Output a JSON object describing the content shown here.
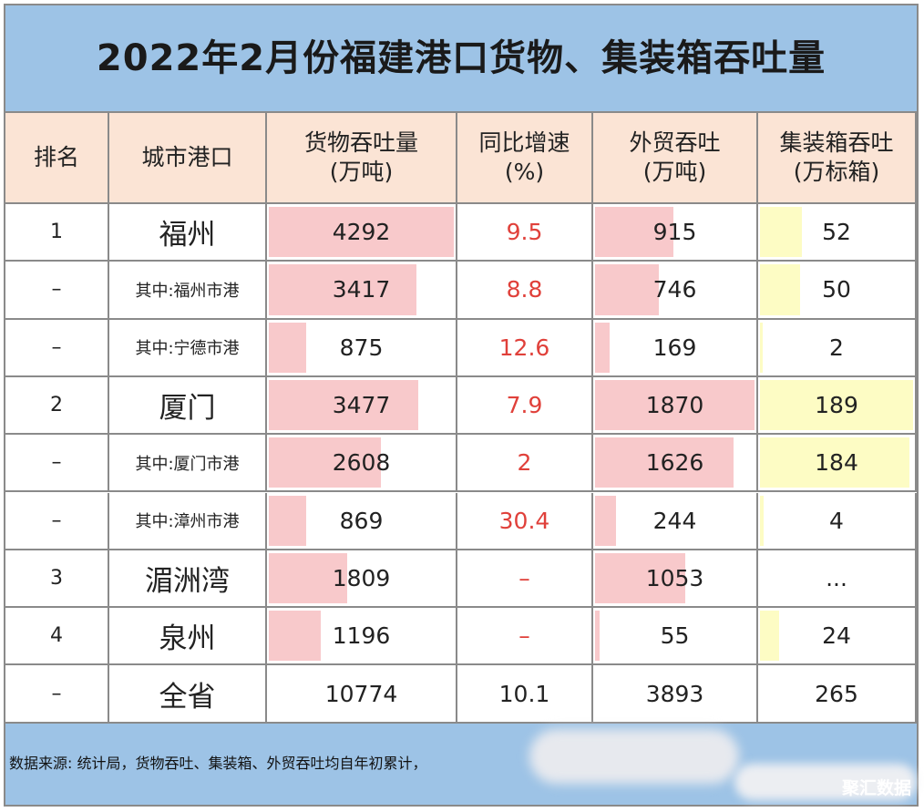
{
  "title": "2022年2月份福建港口货物、集装箱吞吐量",
  "chart_data": {
    "type": "table",
    "columns": [
      {
        "key": "rank",
        "line1": "排名",
        "line2": ""
      },
      {
        "key": "city",
        "line1": "城市港口",
        "line2": ""
      },
      {
        "key": "cargo",
        "line1": "货物吞吐量",
        "line2": "(万吨)"
      },
      {
        "key": "growth",
        "line1": "同比增速",
        "line2": "(%)"
      },
      {
        "key": "foreign",
        "line1": "外贸吞吐",
        "line2": "(万吨)"
      },
      {
        "key": "container",
        "line1": "集装箱吞吐",
        "line2": "(万标箱)"
      }
    ],
    "rows": [
      {
        "rank": "1",
        "city": "福州",
        "sub": false,
        "cargo": "4292",
        "growth": "9.5",
        "foreign": "915",
        "container": "52"
      },
      {
        "rank": "–",
        "city": "其中:福州市港",
        "sub": true,
        "cargo": "3417",
        "growth": "8.8",
        "foreign": "746",
        "container": "50"
      },
      {
        "rank": "–",
        "city": "其中:宁德市港",
        "sub": true,
        "cargo": "875",
        "growth": "12.6",
        "foreign": "169",
        "container": "2"
      },
      {
        "rank": "2",
        "city": "厦门",
        "sub": false,
        "cargo": "3477",
        "growth": "7.9",
        "foreign": "1870",
        "container": "189"
      },
      {
        "rank": "–",
        "city": "其中:厦门市港",
        "sub": true,
        "cargo": "2608",
        "growth": "2",
        "foreign": "1626",
        "container": "184"
      },
      {
        "rank": "–",
        "city": "其中:漳州市港",
        "sub": true,
        "cargo": "869",
        "growth": "30.4",
        "foreign": "244",
        "container": "4"
      },
      {
        "rank": "3",
        "city": "湄洲湾",
        "sub": false,
        "cargo": "1809",
        "growth": "–",
        "foreign": "1053",
        "container": "..."
      },
      {
        "rank": "4",
        "city": "泉州",
        "sub": false,
        "cargo": "1196",
        "growth": "–",
        "foreign": "55",
        "container": "24"
      },
      {
        "rank": "–",
        "city": "全省",
        "sub": false,
        "total": true,
        "cargo": "10774",
        "growth": "10.1",
        "foreign": "3893",
        "container": "265"
      }
    ]
  },
  "footer": {
    "source": "数据来源: 统计局，货物吞吐、集装箱、外贸吞吐均自年初累计，",
    "brand": "聚汇数据"
  },
  "colors": {
    "header_band": "#9dc3e6",
    "header_row": "#fbe4d5",
    "bar_pink": "#f8c9cb",
    "bar_yellow": "#fdfcc4",
    "growth_text": "#e0403a",
    "grid_line": "#8a8a8a"
  }
}
